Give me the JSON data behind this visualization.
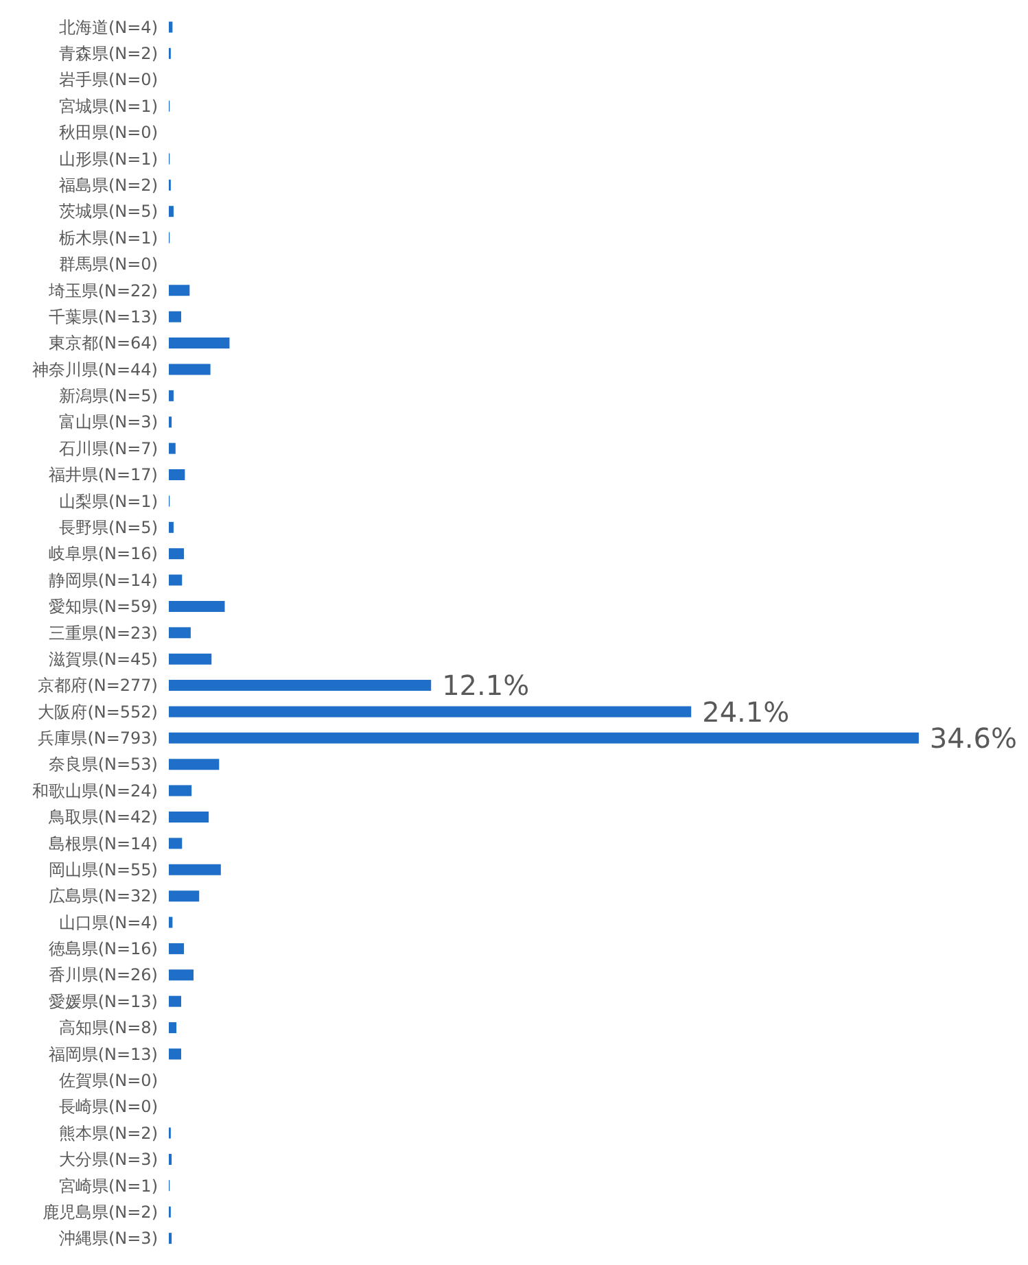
{
  "chart_data": {
    "type": "bar",
    "orientation": "horizontal",
    "categories": [
      "北海道(N=4)",
      "青森県(N=2)",
      "岩手県(N=0)",
      "宮城県(N=1)",
      "秋田県(N=0)",
      "山形県(N=1)",
      "福島県(N=2)",
      "茨城県(N=5)",
      "栃木県(N=1)",
      "群馬県(N=0)",
      "埼玉県(N=22)",
      "千葉県(N=13)",
      "東京都(N=64)",
      "神奈川県(N=44)",
      "新潟県(N=5)",
      "富山県(N=3)",
      "石川県(N=7)",
      "福井県(N=17)",
      "山梨県(N=1)",
      "長野県(N=5)",
      "岐阜県(N=16)",
      "静岡県(N=14)",
      "愛知県(N=59)",
      "三重県(N=23)",
      "滋賀県(N=45)",
      "京都府(N=277)",
      "大阪府(N=552)",
      "兵庫県(N=793)",
      "奈良県(N=53)",
      "和歌山県(N=24)",
      "鳥取県(N=42)",
      "島根県(N=14)",
      "岡山県(N=55)",
      "広島県(N=32)",
      "山口県(N=4)",
      "徳島県(N=16)",
      "香川県(N=26)",
      "愛媛県(N=13)",
      "高知県(N=8)",
      "福岡県(N=13)",
      "佐賀県(N=0)",
      "長崎県(N=0)",
      "熊本県(N=2)",
      "大分県(N=3)",
      "宮崎県(N=1)",
      "鹿児島県(N=2)",
      "沖縄県(N=3)"
    ],
    "values": [
      0.17,
      0.09,
      0,
      0.04,
      0,
      0.04,
      0.09,
      0.22,
      0.04,
      0,
      0.96,
      0.57,
      2.8,
      1.92,
      0.22,
      0.13,
      0.31,
      0.74,
      0.04,
      0.22,
      0.7,
      0.61,
      2.58,
      1.01,
      1.97,
      12.1,
      24.1,
      34.6,
      2.32,
      1.05,
      1.84,
      0.61,
      2.4,
      1.4,
      0.17,
      0.7,
      1.14,
      0.57,
      0.35,
      0.57,
      0,
      0,
      0.09,
      0.13,
      0.04,
      0.09,
      0.13
    ],
    "value_labels": [
      null,
      null,
      null,
      null,
      null,
      null,
      null,
      null,
      null,
      null,
      null,
      null,
      null,
      null,
      null,
      null,
      null,
      null,
      null,
      null,
      null,
      null,
      null,
      null,
      null,
      "12.1%",
      "24.1%",
      "34.6%",
      null,
      null,
      null,
      null,
      null,
      null,
      null,
      null,
      null,
      null,
      null,
      null,
      null,
      null,
      null,
      null,
      null,
      null,
      null
    ],
    "color": "#1f6fc8"
  }
}
